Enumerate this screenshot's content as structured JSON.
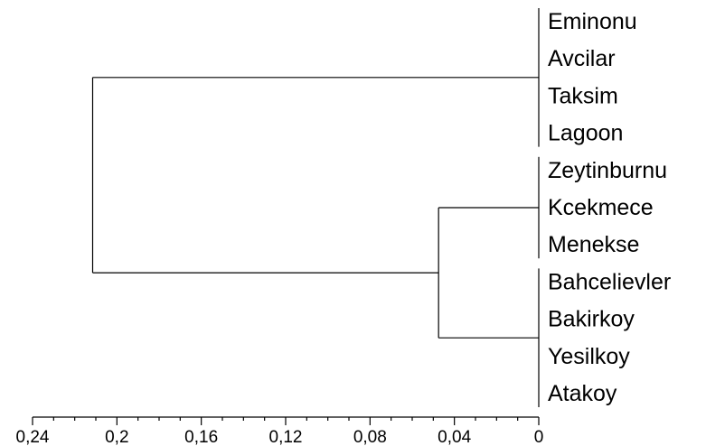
{
  "chart_data": {
    "type": "dendrogram",
    "orientation": "leaves-right",
    "x_axis": {
      "reversed": true,
      "range": [
        0.24,
        0
      ],
      "ticks": [
        {
          "value": 0.24,
          "label": "0,24"
        },
        {
          "value": 0.2,
          "label": "0,2"
        },
        {
          "value": 0.16,
          "label": "0,16"
        },
        {
          "value": 0.12,
          "label": "0,12"
        },
        {
          "value": 0.08,
          "label": "0,08"
        },
        {
          "value": 0.04,
          "label": "0,04"
        },
        {
          "value": 0,
          "label": "0"
        }
      ]
    },
    "leaves": [
      "Eminonu",
      "Avcilar",
      "Taksim",
      "Lagoon",
      "Zeytinburnu",
      "Kcekmece",
      "Menekse",
      "Bahcelievler",
      "Bakirkoy",
      "Yesilkoy",
      "Atakoy"
    ],
    "clusters": [
      {
        "id": "A",
        "members": [
          "Eminonu",
          "Avcilar",
          "Taksim",
          "Lagoon"
        ],
        "height": 0.0
      },
      {
        "id": "B",
        "members": [
          "Zeytinburnu",
          "Kcekmece",
          "Menekse"
        ],
        "height": 0.0
      },
      {
        "id": "C",
        "members": [
          "Bahcelievler",
          "Bakirkoy",
          "Yesilkoy",
          "Atakoy"
        ],
        "height": 0.0
      },
      {
        "id": "BC",
        "children": [
          "B",
          "C"
        ],
        "height": 0.0475
      },
      {
        "id": "root",
        "children": [
          "A",
          "BC"
        ],
        "height": 0.2115
      }
    ]
  }
}
